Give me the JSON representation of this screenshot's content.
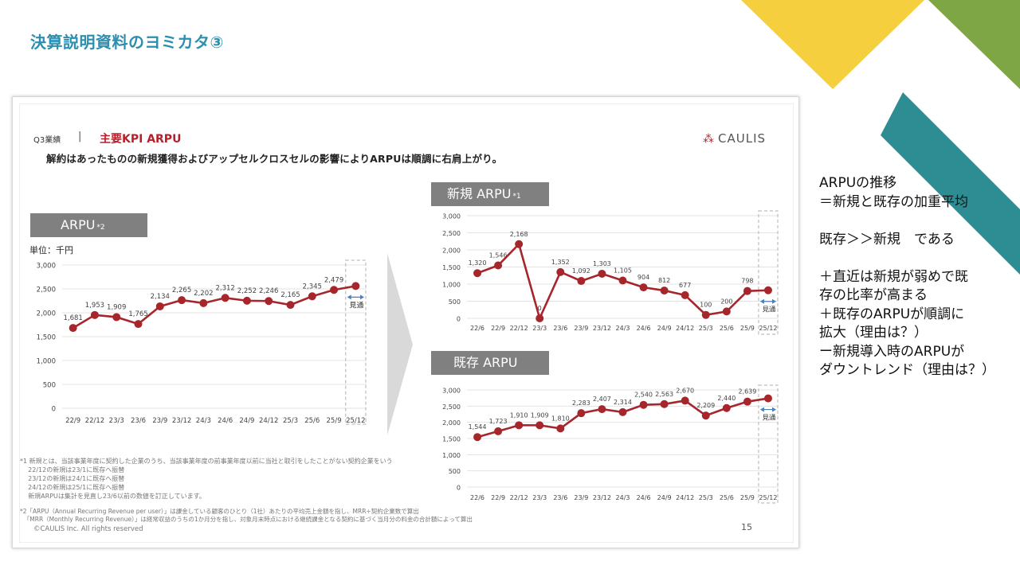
{
  "header": {
    "title": "決算説明資料のヨミカタ③"
  },
  "slide": {
    "q3_label": "Q3業績",
    "separator": "|",
    "kpi_title": "主要KPI ARPU",
    "subtitle": "解約はあったものの新規獲得およびアップセルクロスセルの影響によりARPUは順調に右肩上がり。",
    "logo": {
      "text": "CAULIS",
      "icon": "caulis-logo-icon"
    },
    "unit_label": "単位：千円",
    "footnote_1": "*1 新規とは、当該事業年度に契約した企業のうち、当該事業年度の前事業年度以前に当社と取引をしたことがない契約企業をいう\n    22/12の新規は23/1に既存へ振替\n    23/12の新規は24/1に既存へ振替\n    24/12の新規は25/1に既存へ振替\n    新規ARPUは集計を見直し23/6以前の数値を訂正しています。",
    "footnote_2": "*2「ARPU（Annual Recurring Revenue per user）」は課金している顧客のひとり（1社）あたりの平均売上金額を指し、MRR÷契約企業数で算出\n  「MRR（Monthly Recurring Revenue）」は経常収益のうちの1か月分を指し、対象月末時点における継続課金となる契約に基づく当月分の料金の合計額によって算出",
    "copyright": "©CAULIS Inc. All rights reserved",
    "page_number": "15"
  },
  "notes": {
    "text": "ARPUの推移\n＝新規と既存の加重平均\n\n既存＞＞新規　である\n\n＋直近は新規が弱めで既\n存の比率が高まる\n＋既存のARPUが順調に\n拡大（理由は？）\nー新規導入時のARPUが\nダウントレンド（理由は？）"
  },
  "colors": {
    "line": "#a6262b",
    "label_box": "#808080",
    "title": "#2b8fb0",
    "forecast_arrow": "#4a7fc0"
  },
  "chart_data": [
    {
      "id": "arpu",
      "type": "line",
      "title": "ARPU",
      "title_note": "*2",
      "categories": [
        "22/9",
        "22/12",
        "23/3",
        "23/6",
        "23/9",
        "23/12",
        "24/3",
        "24/6",
        "24/9",
        "24/12",
        "25/3",
        "25/6",
        "25/9",
        "25/12"
      ],
      "values": [
        1681,
        1953,
        1909,
        1765,
        2134,
        2265,
        2202,
        2312,
        2252,
        2246,
        2165,
        2345,
        2479,
        2560
      ],
      "data_labels": [
        "1,681",
        "1,953",
        "1,909",
        "1,765",
        "2,134",
        "2,265",
        "2,202",
        "2,312",
        "2,252",
        "2,246",
        "2,165",
        "2,345",
        "2,479",
        ""
      ],
      "y_ticks": [
        "3,000",
        "2,500",
        "2,000",
        "1,500",
        "1,000",
        "500",
        "0"
      ],
      "ylim": [
        0,
        3000
      ],
      "forecast_label": "見通"
    },
    {
      "id": "new",
      "type": "line",
      "title": "新規 ARPU",
      "title_note": "*1",
      "categories": [
        "22/6",
        "22/9",
        "22/12",
        "23/3",
        "23/6",
        "23/9",
        "23/12",
        "24/3",
        "24/6",
        "24/9",
        "24/12",
        "25/3",
        "25/6",
        "25/9",
        "25/12"
      ],
      "values": [
        1320,
        1546,
        2168,
        0,
        1352,
        1092,
        1303,
        1105,
        904,
        812,
        677,
        100,
        200,
        798,
        820
      ],
      "data_labels": [
        "1,320",
        "1,546",
        "2,168",
        "0",
        "1,352",
        "1,092",
        "1,303",
        "1,105",
        "904",
        "812",
        "677",
        "100",
        "200",
        "798",
        ""
      ],
      "y_ticks": [
        "3,000",
        "2,500",
        "2,000",
        "1,500",
        "1,000",
        "500",
        "0"
      ],
      "ylim": [
        0,
        3000
      ],
      "forecast_label": "見通"
    },
    {
      "id": "existing",
      "type": "line",
      "title": "既存 ARPU",
      "title_note": "",
      "categories": [
        "22/6",
        "22/9",
        "22/12",
        "23/3",
        "23/6",
        "23/9",
        "23/12",
        "24/3",
        "24/6",
        "24/9",
        "24/12",
        "25/3",
        "25/6",
        "25/9",
        "25/12"
      ],
      "values": [
        1544,
        1723,
        1910,
        1909,
        1810,
        2283,
        2407,
        2314,
        2540,
        2563,
        2670,
        2209,
        2440,
        2639,
        2740
      ],
      "data_labels": [
        "1,544",
        "1,723",
        "1,910",
        "1,909",
        "1,810",
        "2,283",
        "2,407",
        "2,314",
        "2,540",
        "2,563",
        "2,670",
        "2,209",
        "2,440",
        "2,639",
        ""
      ],
      "y_ticks": [
        "3,000",
        "2,500",
        "2,000",
        "1,500",
        "1,000",
        "500",
        "0"
      ],
      "ylim": [
        0,
        3000
      ],
      "forecast_label": "見通"
    }
  ]
}
